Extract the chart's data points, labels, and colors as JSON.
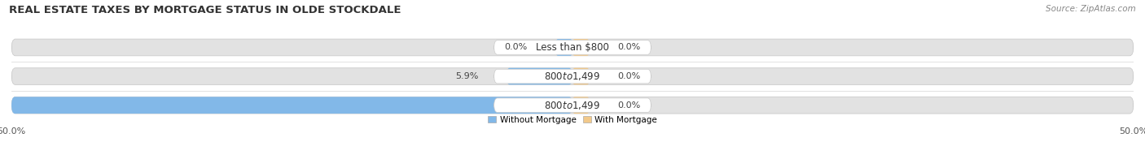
{
  "title": "REAL ESTATE TAXES BY MORTGAGE STATUS IN OLDE STOCKDALE",
  "source_text": "Source: ZipAtlas.com",
  "rows": [
    {
      "label": "Less than $800",
      "without_mortgage": 0.0,
      "with_mortgage": 0.0
    },
    {
      "label": "$800 to $1,499",
      "without_mortgage": 5.9,
      "with_mortgage": 0.0
    },
    {
      "label": "$800 to $1,499",
      "without_mortgage": 50.0,
      "with_mortgage": 0.0
    }
  ],
  "without_mortgage_color": "#82B8E8",
  "with_mortgage_color": "#F2C98A",
  "background_color": "#FFFFFF",
  "bar_bg_color": "#E2E2E2",
  "bar_bg_edge_color": "#CCCCCC",
  "xlim": [
    -50,
    50
  ],
  "xtick_left_label": "50.0%",
  "xtick_right_label": "50.0%",
  "legend_labels": [
    "Without Mortgage",
    "With Mortgage"
  ],
  "title_fontsize": 9.5,
  "source_fontsize": 7.5,
  "label_fontsize": 8.5,
  "pct_fontsize": 8,
  "tick_fontsize": 8,
  "bar_height": 0.58
}
